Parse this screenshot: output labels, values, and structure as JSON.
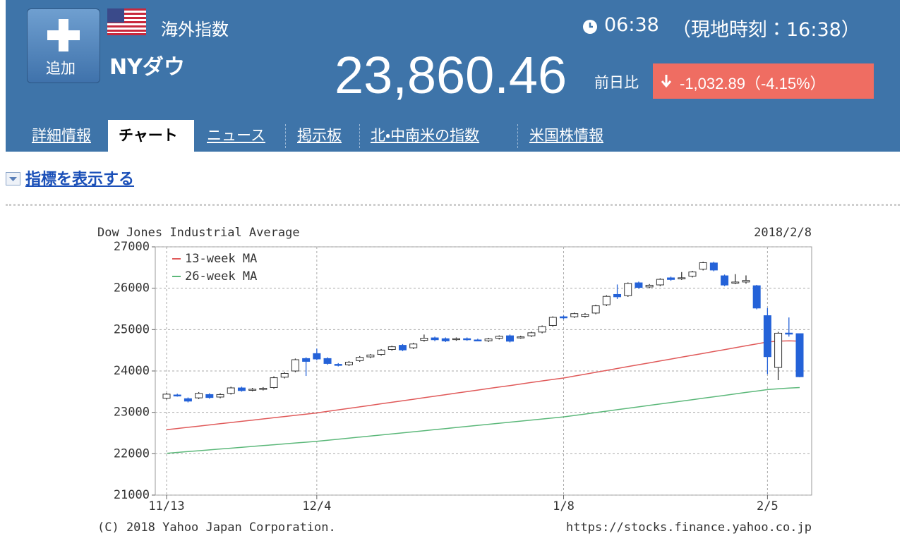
{
  "header": {
    "add_button": "追加",
    "category": "海外指数",
    "name": "NYダウ",
    "time": "06:38",
    "local_time": "（現地時刻：16:38）",
    "price": "23,860.46",
    "change_label": "前日比",
    "change": "-1,032.89（-4.15%）"
  },
  "tabs": [
    "詳細情報",
    "チャート",
    "ニュース",
    "掲示板",
    "北・中南米の指数",
    "米国株情報"
  ],
  "indicator_link": "指標を表示する",
  "chart_data": {
    "type": "candlestick",
    "title": "Dow Jones Industrial Average",
    "date": "2018/2/8",
    "categories": [
      "11/13",
      null,
      null,
      null,
      null,
      null,
      null,
      null,
      null,
      null,
      null,
      null,
      null,
      null,
      "12/4",
      null,
      null,
      null,
      null,
      null,
      null,
      null,
      null,
      null,
      null,
      null,
      null,
      null,
      null,
      null,
      null,
      null,
      null,
      null,
      null,
      null,
      null,
      "1/8",
      null,
      null,
      null,
      null,
      null,
      null,
      null,
      null,
      null,
      null,
      null,
      null,
      null,
      null,
      null,
      null,
      null,
      null,
      "2/5",
      null,
      null,
      null
    ],
    "open": [
      23340,
      23420,
      23330,
      23350,
      23430,
      23370,
      23460,
      23590,
      23540,
      23560,
      23600,
      23850,
      24000,
      24300,
      24420,
      24300,
      24160,
      24150,
      24250,
      24340,
      24400,
      24520,
      24620,
      24560,
      24740,
      24800,
      24780,
      24760,
      24780,
      24750,
      24730,
      24790,
      24850,
      24810,
      24850,
      24940,
      25100,
      25310,
      25310,
      25320,
      25400,
      25600,
      25850,
      25820,
      26130,
      26030,
      26080,
      26250,
      26230,
      26290,
      26460,
      26610,
      26300,
      26130,
      26150,
      26060,
      25337,
      24085,
      24916,
      24902
    ],
    "high": [
      23470,
      23450,
      23360,
      23490,
      23460,
      23460,
      23620,
      23620,
      23590,
      23610,
      23870,
      23970,
      24300,
      24330,
      24540,
      24330,
      24190,
      24240,
      24360,
      24410,
      24530,
      24610,
      24650,
      24680,
      24880,
      24830,
      24810,
      24810,
      24810,
      24780,
      24800,
      24860,
      24880,
      24850,
      24950,
      25100,
      25320,
      25340,
      25410,
      25400,
      25600,
      25830,
      26090,
      26140,
      26160,
      26100,
      26240,
      26280,
      26390,
      26420,
      26640,
      26640,
      26330,
      26340,
      26310,
      26080,
      25520,
      24946,
      25293,
      24903
    ],
    "low": [
      23310,
      23380,
      23240,
      23320,
      23330,
      23340,
      23430,
      23500,
      23510,
      23530,
      23570,
      23820,
      23970,
      23880,
      24260,
      24150,
      24110,
      24120,
      24220,
      24310,
      24370,
      24490,
      24480,
      24530,
      24710,
      24720,
      24700,
      24730,
      24730,
      24720,
      24700,
      24760,
      24690,
      24780,
      24820,
      24910,
      25070,
      25250,
      25280,
      25290,
      25370,
      25570,
      25740,
      25790,
      25990,
      26000,
      26050,
      26180,
      26200,
      26260,
      26430,
      26410,
      26050,
      26100,
      26110,
      25490,
      23923,
      23778,
      24830,
      23849
    ],
    "close": [
      23439.7,
      23409.47,
      23271.28,
      23458.36,
      23358.24,
      23430.33,
      23590.83,
      23526.18,
      23557.99,
      23580.78,
      23836.71,
      23940.68,
      24272.35,
      24231.59,
      24290.05,
      24180.64,
      24140.91,
      24211.48,
      24329.16,
      24386.03,
      24504.8,
      24585.43,
      24508.66,
      24651.74,
      24792.2,
      24754.75,
      24726.65,
      24782.29,
      24754.06,
      24746.21,
      24774.3,
      24837.51,
      24719.22,
      24824.01,
      24922.68,
      25075.13,
      25295.87,
      25283.0,
      25385.8,
      25369.13,
      25574.73,
      25803.19,
      25792.86,
      26115.65,
      26017.81,
      26071.72,
      26214.6,
      26210.81,
      26252.12,
      26392.79,
      26616.71,
      26439.48,
      26076.89,
      26149.39,
      26186.71,
      25520.96,
      24345.75,
      24912.77,
      24893.35,
      23860.46
    ],
    "up_color": "#ffffff",
    "down_color": "#2462d8",
    "series": [
      {
        "name": "13-week MA",
        "color": "#e05a5a",
        "values": [
          22580,
          22609,
          22638,
          22667,
          22696,
          22725,
          22754,
          22783,
          22812,
          22841,
          22870,
          22899,
          22928,
          22957,
          22986,
          23023,
          23060,
          23096,
          23133,
          23170,
          23207,
          23244,
          23280,
          23317,
          23354,
          23391,
          23428,
          23464,
          23501,
          23538,
          23575,
          23612,
          23648,
          23685,
          23722,
          23759,
          23796,
          23830,
          23876,
          23922,
          23967,
          24013,
          24059,
          24105,
          24151,
          24196,
          24242,
          24288,
          24334,
          24380,
          24425,
          24471,
          24517,
          24563,
          24608,
          24654,
          24700,
          24720,
          24730,
          24720
        ]
      },
      {
        "name": "26-week MA",
        "color": "#5cb87a",
        "values": [
          22010,
          22031,
          22051,
          22072,
          22093,
          22114,
          22134,
          22155,
          22176,
          22196,
          22217,
          22238,
          22259,
          22279,
          22300,
          22326,
          22351,
          22377,
          22403,
          22428,
          22454,
          22480,
          22505,
          22531,
          22557,
          22583,
          22608,
          22634,
          22660,
          22685,
          22711,
          22737,
          22762,
          22788,
          22814,
          22839,
          22865,
          22890,
          22925,
          22959,
          22994,
          23029,
          23064,
          23098,
          23133,
          23168,
          23203,
          23237,
          23272,
          23307,
          23342,
          23376,
          23411,
          23446,
          23481,
          23515,
          23550,
          23570,
          23585,
          23600
        ]
      }
    ],
    "ylim": [
      21000,
      27000
    ],
    "yticks": [
      21000,
      22000,
      23000,
      24000,
      25000,
      26000,
      27000
    ],
    "grid": true,
    "legend": "upper left",
    "copyright": "(C) 2018 Yahoo Japan Corporation.",
    "url": "https://stocks.finance.yahoo.co.jp"
  }
}
